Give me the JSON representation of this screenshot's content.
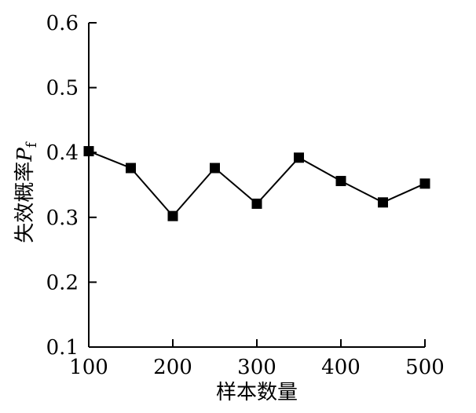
{
  "chart_data": {
    "type": "line",
    "x": [
      100,
      150,
      200,
      250,
      300,
      350,
      400,
      450,
      500
    ],
    "series": [
      {
        "values": [
          0.402,
          0.376,
          0.302,
          0.376,
          0.321,
          0.392,
          0.356,
          0.323,
          0.352
        ]
      }
    ],
    "xlabel": "样本数量",
    "ylabel_main": "失效概率",
    "ylabel_symbol": "P",
    "ylabel_subscript": "f",
    "xlim": [
      100,
      500
    ],
    "ylim": [
      0.1,
      0.6
    ],
    "xticks": [
      100,
      200,
      300,
      400,
      500
    ],
    "yticks": [
      0.1,
      0.2,
      0.3,
      0.4,
      0.5,
      0.6
    ],
    "xtick_labels": [
      "100",
      "200",
      "300",
      "400",
      "500"
    ],
    "ytick_labels": [
      "0.1",
      "0.2",
      "0.3",
      "0.4",
      "0.5",
      "0.6"
    ],
    "grid": false,
    "marker": "square"
  }
}
